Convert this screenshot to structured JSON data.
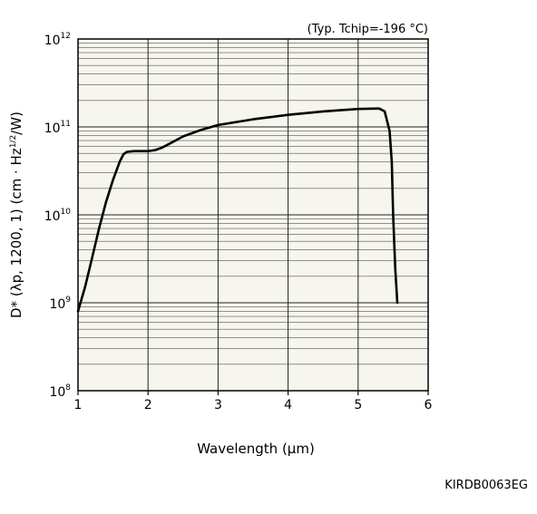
{
  "chart_data": {
    "type": "line",
    "title": "",
    "annotation": "(Typ. Tchip=-196 °C)",
    "xlabel": "Wavelength (µm)",
    "ylabel": "D* (λp, 1200, 1) (cm · Hz1/2/W)",
    "ylabel_parts": {
      "main": "D* (λp, 1200, 1) (cm · Hz",
      "sup": "1/2",
      "tail": "/W)"
    },
    "xlim": [
      1,
      6
    ],
    "ylim": [
      100000000.0,
      1000000000000.0
    ],
    "y_scale": "log",
    "grid": true,
    "x_ticks": [
      "1",
      "2",
      "3",
      "4",
      "5",
      "6"
    ],
    "y_ticks": [
      {
        "base": "10",
        "exp": "8",
        "value": 100000000.0
      },
      {
        "base": "10",
        "exp": "9",
        "value": 1000000000.0
      },
      {
        "base": "10",
        "exp": "10",
        "value": 10000000000.0
      },
      {
        "base": "10",
        "exp": "11",
        "value": 100000000000.0
      },
      {
        "base": "10",
        "exp": "12",
        "value": 1000000000000.0
      }
    ],
    "series": [
      {
        "x": [
          1.0,
          1.1,
          1.2,
          1.3,
          1.4,
          1.5,
          1.6,
          1.65,
          1.7,
          1.8,
          1.9,
          2.0,
          2.1,
          2.2,
          2.3,
          2.5,
          2.75,
          3.0,
          3.5,
          4.0,
          4.5,
          5.0,
          5.3,
          5.38,
          5.45,
          5.48,
          5.5,
          5.53,
          5.56
        ],
        "y": [
          800000000.0,
          1500000000.0,
          3200000000.0,
          7000000000.0,
          14000000000.0,
          25000000000.0,
          41000000000.0,
          49000000000.0,
          52000000000.0,
          53000000000.0,
          53000000000.0,
          53000000000.0,
          54500000000.0,
          58000000000.0,
          64000000000.0,
          78000000000.0,
          92000000000.0,
          105000000000.0,
          122000000000.0,
          137000000000.0,
          150000000000.0,
          160000000000.0,
          162000000000.0,
          150000000000.0,
          90000000000.0,
          40000000000.0,
          10000000000.0,
          2500000000.0,
          1000000000.0
        ]
      }
    ]
  },
  "figure_code": "KIRDB0063EG"
}
